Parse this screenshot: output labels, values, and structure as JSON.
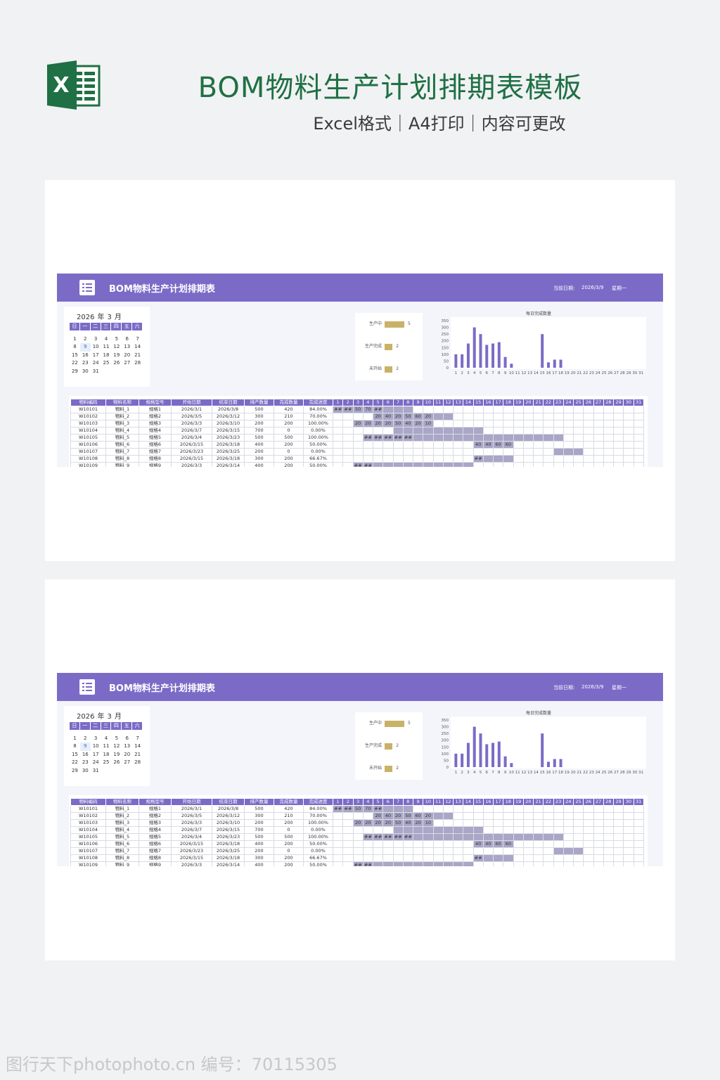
{
  "header": {
    "logo_icon": "excel-icon",
    "logo_letter": "X",
    "title": "BOM物料生产计划排期表模板",
    "subtitle": "Excel格式｜A4打印｜内容可更改"
  },
  "sheet": {
    "icon": "list-icon",
    "title": "BOM物料生产计划排期表",
    "date_label": "当前日期:",
    "date_value": "2026/3/9",
    "weekday": "星期一",
    "accent": "#7b6bc7",
    "status_color": "#c9b267"
  },
  "calendar": {
    "year": "2026",
    "year_suffix": "年",
    "month": "3",
    "month_suffix": "月",
    "weekdays": [
      "日",
      "一",
      "二",
      "三",
      "四",
      "五",
      "六"
    ],
    "weeks": [
      [
        "",
        "",
        "",
        "",
        "",
        "",
        ""
      ],
      [
        "1",
        "2",
        "3",
        "4",
        "5",
        "6",
        "7"
      ],
      [
        "8",
        "9",
        "10",
        "11",
        "12",
        "13",
        "14"
      ],
      [
        "15",
        "16",
        "17",
        "18",
        "19",
        "20",
        "21"
      ],
      [
        "22",
        "23",
        "24",
        "25",
        "26",
        "27",
        "28"
      ],
      [
        "29",
        "30",
        "31",
        "",
        "",
        "",
        ""
      ]
    ],
    "today": "9"
  },
  "status": [
    {
      "label": "生产中",
      "value": 5
    },
    {
      "label": "生产完成",
      "value": 2
    },
    {
      "label": "未开始",
      "value": 2
    }
  ],
  "chart_data": {
    "type": "bar",
    "title": "每日完成数量",
    "categories": [
      "1",
      "2",
      "3",
      "4",
      "5",
      "6",
      "7",
      "8",
      "9",
      "10",
      "11",
      "12",
      "13",
      "14",
      "15",
      "16",
      "17",
      "18",
      "19",
      "20",
      "21",
      "22",
      "23",
      "24",
      "25",
      "26",
      "27",
      "28",
      "29",
      "30",
      "31"
    ],
    "values": [
      100,
      100,
      180,
      300,
      250,
      170,
      180,
      190,
      80,
      30,
      0,
      0,
      0,
      0,
      250,
      40,
      60,
      60,
      0,
      0,
      0,
      0,
      0,
      0,
      0,
      0,
      0,
      0,
      0,
      0,
      0
    ],
    "yticks": [
      0,
      50,
      100,
      150,
      200,
      250,
      300,
      350
    ],
    "ylim": [
      0,
      350
    ],
    "color": "#7b6bc7"
  },
  "table": {
    "headers": [
      "物料编码",
      "物料名称",
      "规格型号",
      "开始日期",
      "结束日期",
      "排产数量",
      "完成数量",
      "完成进度"
    ],
    "days": [
      "1",
      "2",
      "3",
      "4",
      "5",
      "6",
      "7",
      "8",
      "9",
      "10",
      "11",
      "12",
      "13",
      "14",
      "15",
      "16",
      "17",
      "18",
      "19",
      "20",
      "21",
      "22",
      "23",
      "24",
      "25",
      "26",
      "27",
      "28",
      "29",
      "30",
      "31"
    ],
    "rows": [
      {
        "cells": [
          "W10101",
          "物料_1",
          "规格1",
          "2026/3/1",
          "2026/3/8",
          "500",
          "420",
          "84.00%"
        ],
        "start": 1,
        "end": 8,
        "labels": {
          "1": "##",
          "2": "##",
          "3": "50",
          "4": "70",
          "5": "##"
        }
      },
      {
        "cells": [
          "W10102",
          "物料_2",
          "规格2",
          "2026/3/5",
          "2026/3/12",
          "300",
          "210",
          "70.00%"
        ],
        "start": 5,
        "end": 12,
        "labels": {
          "5": "20",
          "6": "40",
          "7": "20",
          "8": "50",
          "9": "60",
          "10": "20"
        }
      },
      {
        "cells": [
          "W10103",
          "物料_3",
          "规格3",
          "2026/3/3",
          "2026/3/10",
          "200",
          "200",
          "100.00%"
        ],
        "start": 3,
        "end": 10,
        "labels": {
          "3": "20",
          "4": "20",
          "5": "20",
          "6": "20",
          "7": "50",
          "8": "40",
          "9": "20",
          "10": "10"
        }
      },
      {
        "cells": [
          "W10104",
          "物料_4",
          "规格4",
          "2026/3/7",
          "2026/3/15",
          "700",
          "0",
          "0.00%"
        ],
        "start": 7,
        "end": 15,
        "labels": {}
      },
      {
        "cells": [
          "W10105",
          "物料_5",
          "规格5",
          "2026/3/4",
          "2026/3/23",
          "500",
          "500",
          "100.00%"
        ],
        "start": 4,
        "end": 23,
        "labels": {
          "4": "##",
          "5": "##",
          "6": "##",
          "7": "##",
          "8": "##"
        }
      },
      {
        "cells": [
          "W10106",
          "物料_6",
          "规格6",
          "2026/3/15",
          "2026/3/18",
          "400",
          "200",
          "50.00%"
        ],
        "start": 15,
        "end": 18,
        "labels": {
          "15": "40",
          "16": "40",
          "17": "60",
          "18": "60"
        }
      },
      {
        "cells": [
          "W10107",
          "物料_7",
          "规格7",
          "2026/3/23",
          "2026/3/25",
          "200",
          "0",
          "0.00%"
        ],
        "start": 23,
        "end": 25,
        "labels": {}
      },
      {
        "cells": [
          "W10108",
          "物料_8",
          "规格8",
          "2026/3/15",
          "2026/3/18",
          "300",
          "200",
          "66.67%"
        ],
        "start": 15,
        "end": 18,
        "labels": {
          "15": "##"
        }
      },
      {
        "cells": [
          "W10109",
          "物料_9",
          "规格9",
          "2026/3/3",
          "2026/3/14",
          "400",
          "200",
          "50.00%"
        ],
        "start": 3,
        "end": 14,
        "labels": {
          "3": "##",
          "4": "##"
        }
      }
    ]
  },
  "watermark": "图行天下photophoto.cn  编号：70115305"
}
